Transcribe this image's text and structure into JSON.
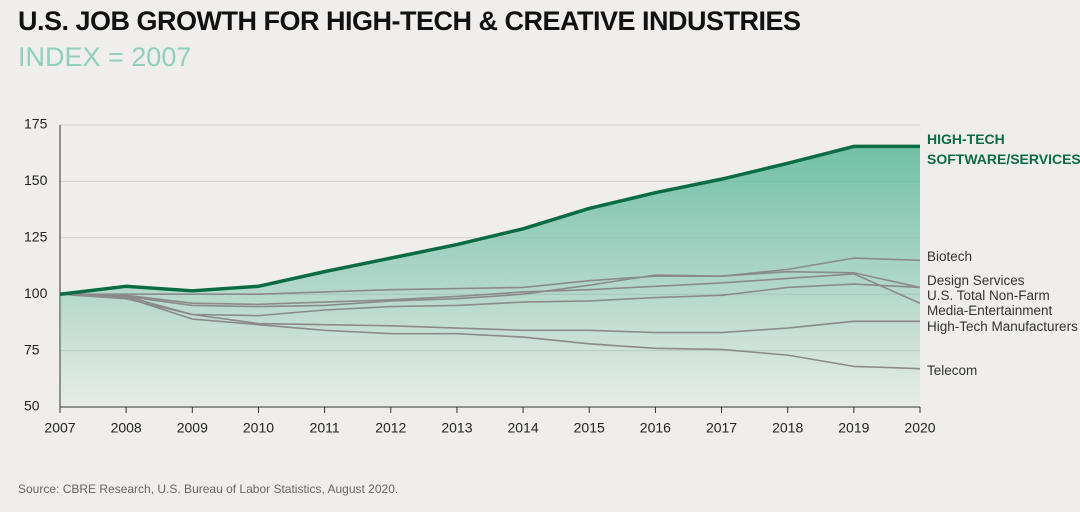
{
  "chart_data": {
    "type": "line",
    "title": "U.S. JOB GROWTH FOR HIGH-TECH & CREATIVE INDUSTRIES",
    "subtitle": "INDEX = 2007",
    "source": "Source: CBRE Research, U.S. Bureau of Labor Statistics, August 2020.",
    "x": [
      2007,
      2008,
      2009,
      2010,
      2011,
      2012,
      2013,
      2014,
      2015,
      2016,
      2017,
      2018,
      2019,
      2020
    ],
    "xlim": [
      2007,
      2020
    ],
    "xticks": [
      2007,
      2008,
      2009,
      2010,
      2011,
      2012,
      2013,
      2014,
      2015,
      2016,
      2017,
      2018,
      2019,
      2020
    ],
    "ylim": [
      50,
      175
    ],
    "yticks": [
      50,
      75,
      100,
      125,
      150,
      175
    ],
    "grid": true,
    "series": [
      {
        "name": "HIGH-TECH SOFTWARE/SERVICES",
        "color": "#0b6b45",
        "values": [
          100,
          103.5,
          101.5,
          103.5,
          110,
          116,
          122,
          129,
          138,
          145,
          151,
          158,
          165.5,
          165.5
        ]
      },
      {
        "name": "Biotech",
        "color": "#8a8a8a",
        "values": [
          100,
          100,
          100,
          100,
          101,
          102,
          102.5,
          103,
          106,
          108,
          108,
          111,
          116,
          115
        ]
      },
      {
        "name": "Design Services",
        "color": "#8a8a8a",
        "values": [
          100,
          99,
          95,
          94.5,
          95,
          97,
          98,
          100,
          104,
          108.5,
          108,
          110,
          109.5,
          103
        ]
      },
      {
        "name": "U.S. Total Non-Farm",
        "color": "#8a8a8a",
        "values": [
          100,
          99.5,
          96,
          95.5,
          96.5,
          97.5,
          99,
          101,
          102,
          103.5,
          105,
          107,
          109,
          96
        ]
      },
      {
        "name": "Media-Entertainment",
        "color": "#8a8a8a",
        "values": [
          100,
          98,
          91,
          90.5,
          93,
          94.5,
          95,
          96.5,
          97,
          98.5,
          99.5,
          103,
          104.5,
          103
        ]
      },
      {
        "name": "High-Tech Manufacturers",
        "color": "#8a8a8a",
        "values": [
          100,
          99,
          91,
          87,
          86.5,
          86,
          85,
          84,
          84,
          83,
          83,
          85,
          88,
          88
        ]
      },
      {
        "name": "Telecom",
        "color": "#8a8a8a",
        "values": [
          100,
          98.5,
          89,
          86.5,
          84,
          82.5,
          82.5,
          81,
          78,
          76,
          75.5,
          73,
          68,
          67
        ]
      }
    ]
  }
}
